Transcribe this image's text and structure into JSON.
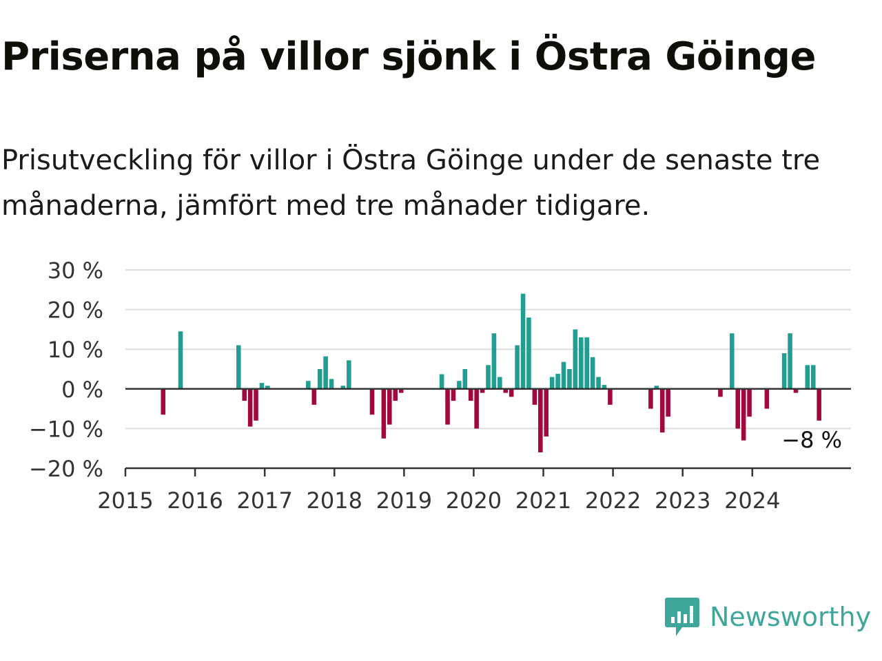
{
  "title": "Priserna på villor sjönk i Östra Göinge",
  "subtitle": "Prisutveckling för villor i Östra Göinge under de senaste tre månaderna, jämfört med tre månader tidigare.",
  "brand": {
    "name": "Newsworthy",
    "icon": "newsworthy-logo-icon",
    "color": "#3fa69b"
  },
  "chart_data": {
    "type": "bar",
    "ylim": [
      -20,
      30
    ],
    "y_ticks": [
      30,
      20,
      10,
      0,
      -10,
      -20
    ],
    "y_tick_labels": [
      "30 %",
      "20 %",
      "10 %",
      "0 %",
      "−10 %",
      "−20 %"
    ],
    "x_tick_labels": [
      "2015",
      "2016",
      "2017",
      "2018",
      "2019",
      "2020",
      "2021",
      "2022",
      "2023",
      "2024"
    ],
    "x_start": "2015-01",
    "x_end": "2025-06",
    "positive_color": "#1f9e91",
    "negative_color": "#a0083f",
    "grid": true,
    "last_value_label": "−8 %",
    "x": [
      "2015-07",
      "2015-10",
      "2016-08",
      "2016-09",
      "2016-10",
      "2016-11",
      "2016-12",
      "2017-01",
      "2017-08",
      "2017-09",
      "2017-10",
      "2017-11",
      "2017-12",
      "2018-02",
      "2018-03",
      "2018-07",
      "2018-09",
      "2018-10",
      "2018-11",
      "2018-12",
      "2019-07",
      "2019-08",
      "2019-09",
      "2019-10",
      "2019-11",
      "2019-12",
      "2020-01",
      "2020-02",
      "2020-03",
      "2020-04",
      "2020-05",
      "2020-06",
      "2020-07",
      "2020-08",
      "2020-09",
      "2020-10",
      "2020-11",
      "2020-12",
      "2021-01",
      "2021-02",
      "2021-03",
      "2021-04",
      "2021-05",
      "2021-06",
      "2021-07",
      "2021-08",
      "2021-09",
      "2021-10",
      "2021-11",
      "2021-12",
      "2022-07",
      "2022-08",
      "2022-09",
      "2022-10",
      "2023-07",
      "2023-09",
      "2023-10",
      "2023-11",
      "2023-12",
      "2024-03",
      "2024-06",
      "2024-07",
      "2024-08",
      "2024-10",
      "2024-11",
      "2024-12"
    ],
    "values": [
      -6.5,
      14.5,
      11,
      -3,
      -9.5,
      -8,
      1.5,
      0.8,
      2,
      -4,
      5,
      8.2,
      2.5,
      0.8,
      7.2,
      -6.5,
      -12.5,
      -9,
      -3,
      -1,
      3.7,
      -9,
      -3,
      2,
      5,
      -3,
      -10,
      -1,
      6,
      14,
      3,
      -1,
      -2,
      11,
      24,
      18,
      -4,
      -16,
      -12,
      3,
      3.8,
      6.8,
      5,
      15,
      13,
      13,
      8,
      3,
      1,
      -4,
      -5,
      0.8,
      -11,
      -7,
      -2,
      14,
      -10,
      -13,
      -7,
      -5,
      9,
      14,
      -1,
      6,
      6,
      -8
    ]
  }
}
